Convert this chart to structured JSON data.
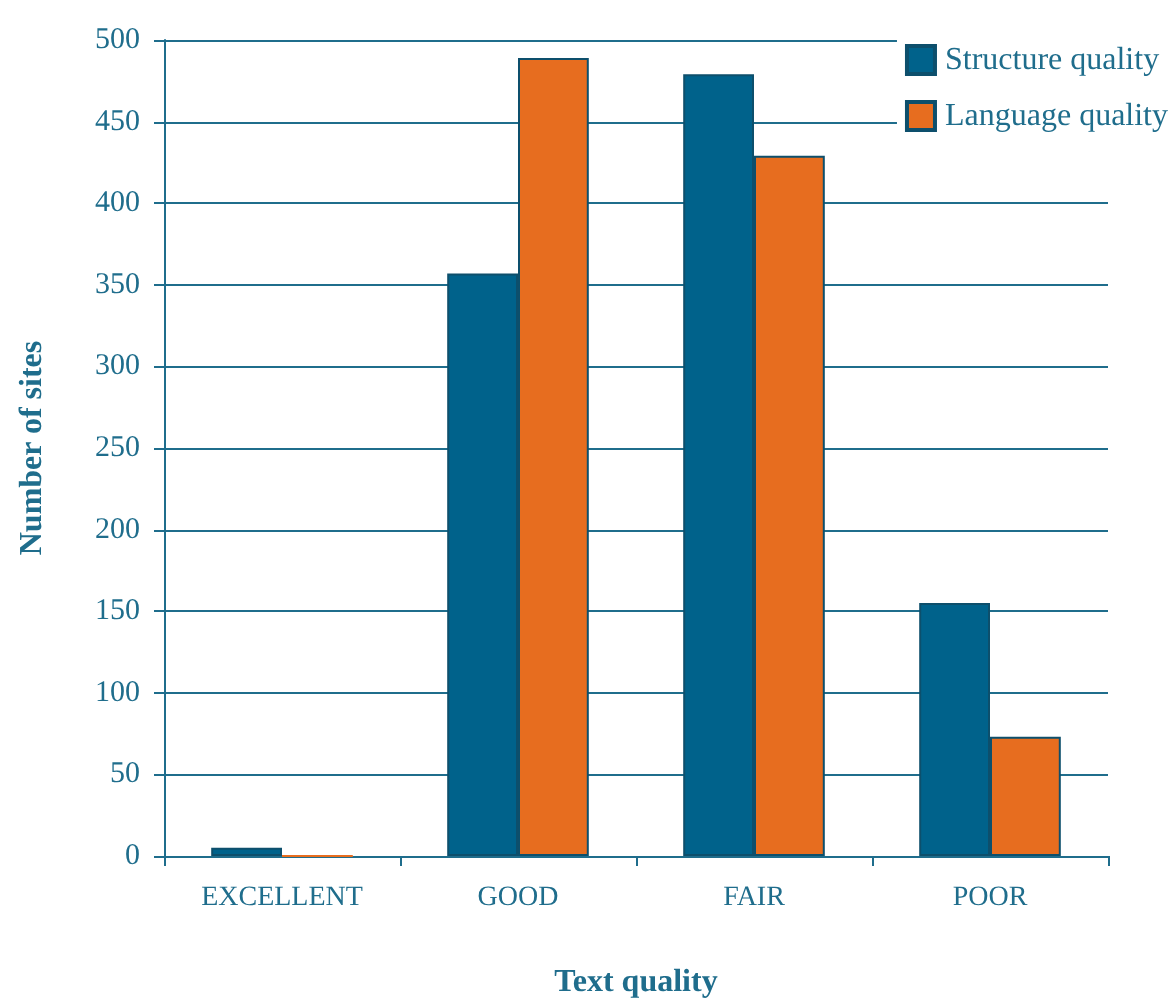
{
  "chart_data": {
    "type": "bar",
    "xlabel": "Text quality",
    "ylabel": "Number of sites",
    "categories": [
      "EXCELLENT",
      "GOOD",
      "FAIR",
      "POOR"
    ],
    "series": [
      {
        "name": "Structure quality",
        "color": "#00628b",
        "values": [
          5,
          357,
          479,
          155
        ]
      },
      {
        "name": "Language quality",
        "color": "#e76d1f",
        "values": [
          0,
          489,
          429,
          73
        ]
      }
    ],
    "ylim": [
      0,
      500
    ],
    "yticks": [
      0,
      50,
      100,
      150,
      200,
      250,
      300,
      350,
      400,
      450,
      500
    ],
    "grid": "y",
    "legend": "top right"
  }
}
